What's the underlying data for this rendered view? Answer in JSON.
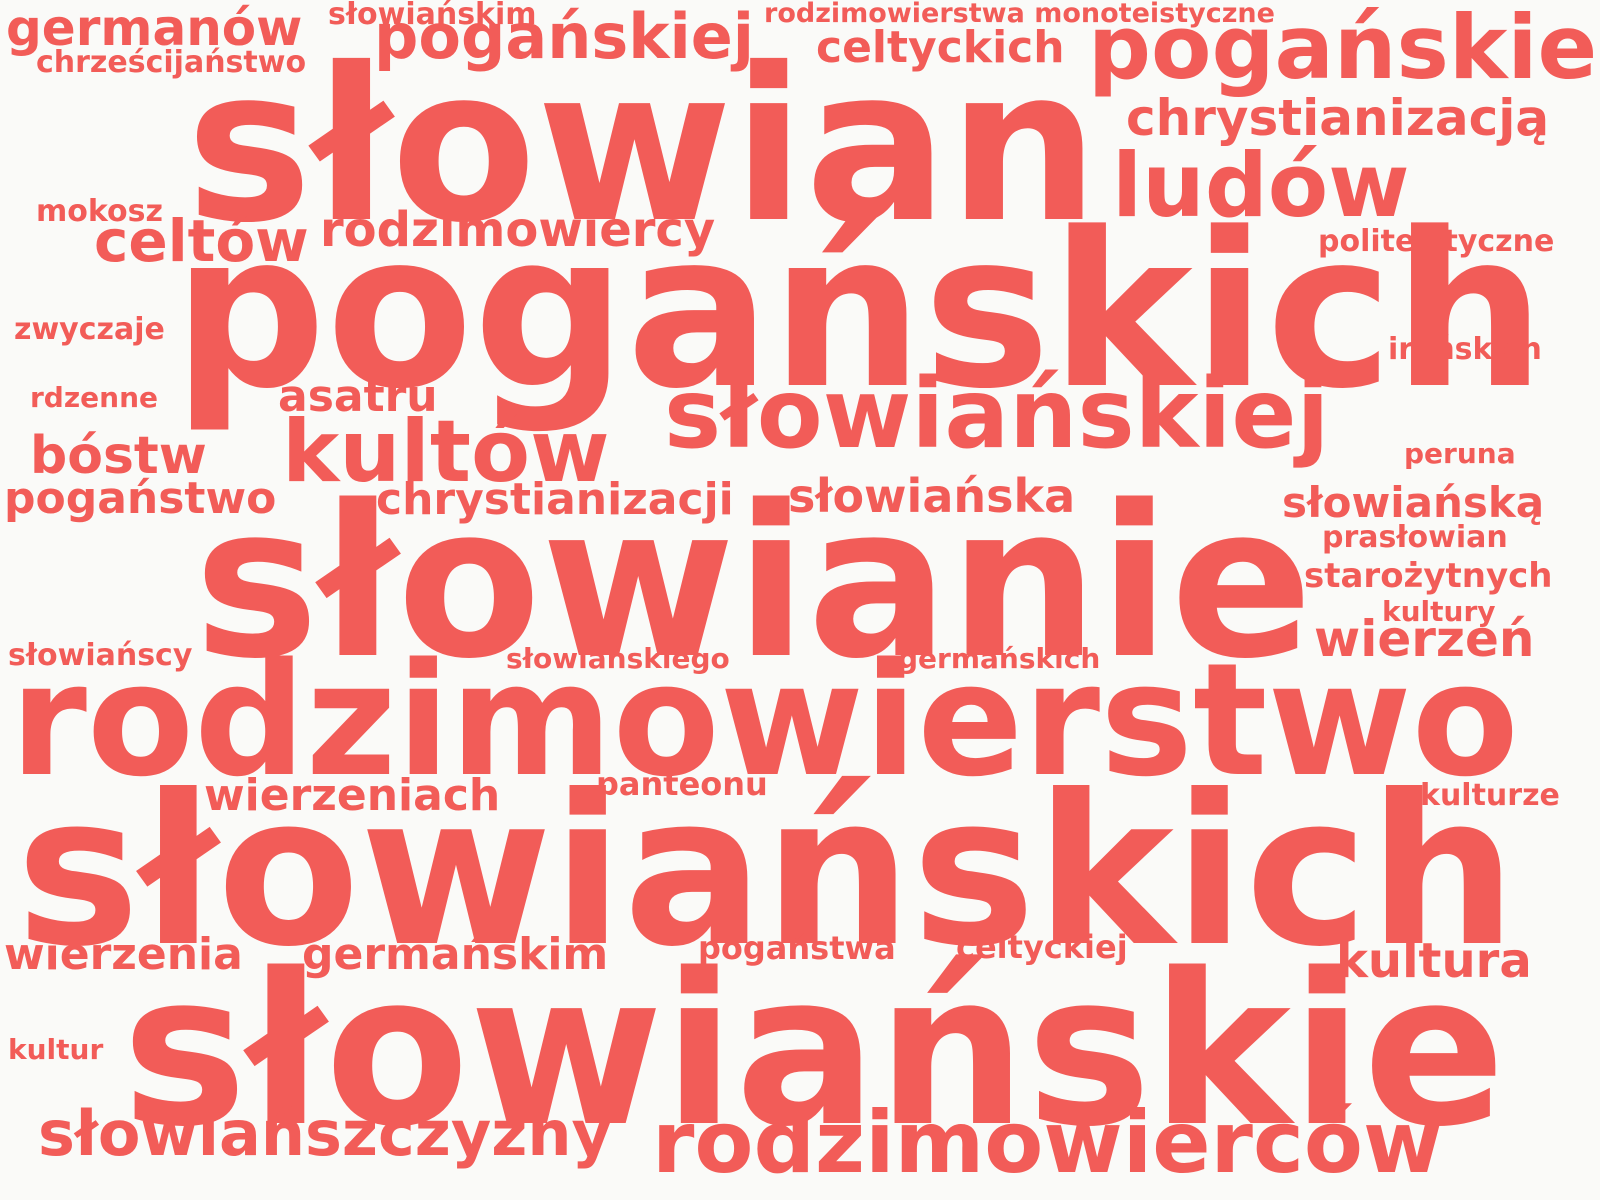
{
  "color": "#f25c58",
  "background": "#fafaf8",
  "words": {
    "slowian": "słowian",
    "poganskich": "pogańskich",
    "slowianie": "słowianie",
    "rodzimowierstwo": "rodzimowierstwo",
    "slowianskich": "słowiańskich",
    "slowianskie": "słowiańskie",
    "poganskie": "pogańskie",
    "poganskiej": "pogańskiej",
    "germanow": "germanów",
    "chrzescijanstwo": "chrześcijaństwo",
    "slowianskim": "słowiańskim",
    "rodzimowierstwa_monoteistyczne": "rodzimowierstwa monoteistyczne",
    "celtyckich": "celtyckich",
    "chrystianizacja": "chrystianizacją",
    "ludow": "ludów",
    "mokosz": "mokosz",
    "celtow": "celtów",
    "rodzimowiercy": "rodzimowiercy",
    "politeistyczne": "politeistyczne",
    "zwyczaje": "zwyczaje",
    "iranskich": "irańskich",
    "rdzenne": "rdzenne",
    "asatru": "asatru",
    "slowianskiej": "słowiańskiej",
    "bostw": "bóstw",
    "kultow": "kultów",
    "peruna": "peruna",
    "poganstwo": "pogaństwo",
    "chrystianizacji": "chrystianizacji",
    "slowianska": "słowiańska",
    "slowianska2": "słowiańską",
    "praslowian": "prasłowian",
    "starozytnych": "starożytnych",
    "kultury": "kultury",
    "slowianscy": "słowiańscy",
    "slowianskiego": "słowiańskiego",
    "germanskich": "germańskich",
    "wierzen": "wierzeń",
    "wierzeniach": "wierzeniach",
    "panteonu": "panteonu",
    "kulturze": "kulturze",
    "wierzenia": "wierzenia",
    "germanskim": "germańskim",
    "poganstwa": "pogaństwa",
    "celtyckiej": "celtyckiej",
    "kultura": "kultura",
    "kultur": "kultur",
    "slowianszczyzny": "słowiańszczyzny",
    "rodzimowiercow": "rodzimowierców"
  }
}
